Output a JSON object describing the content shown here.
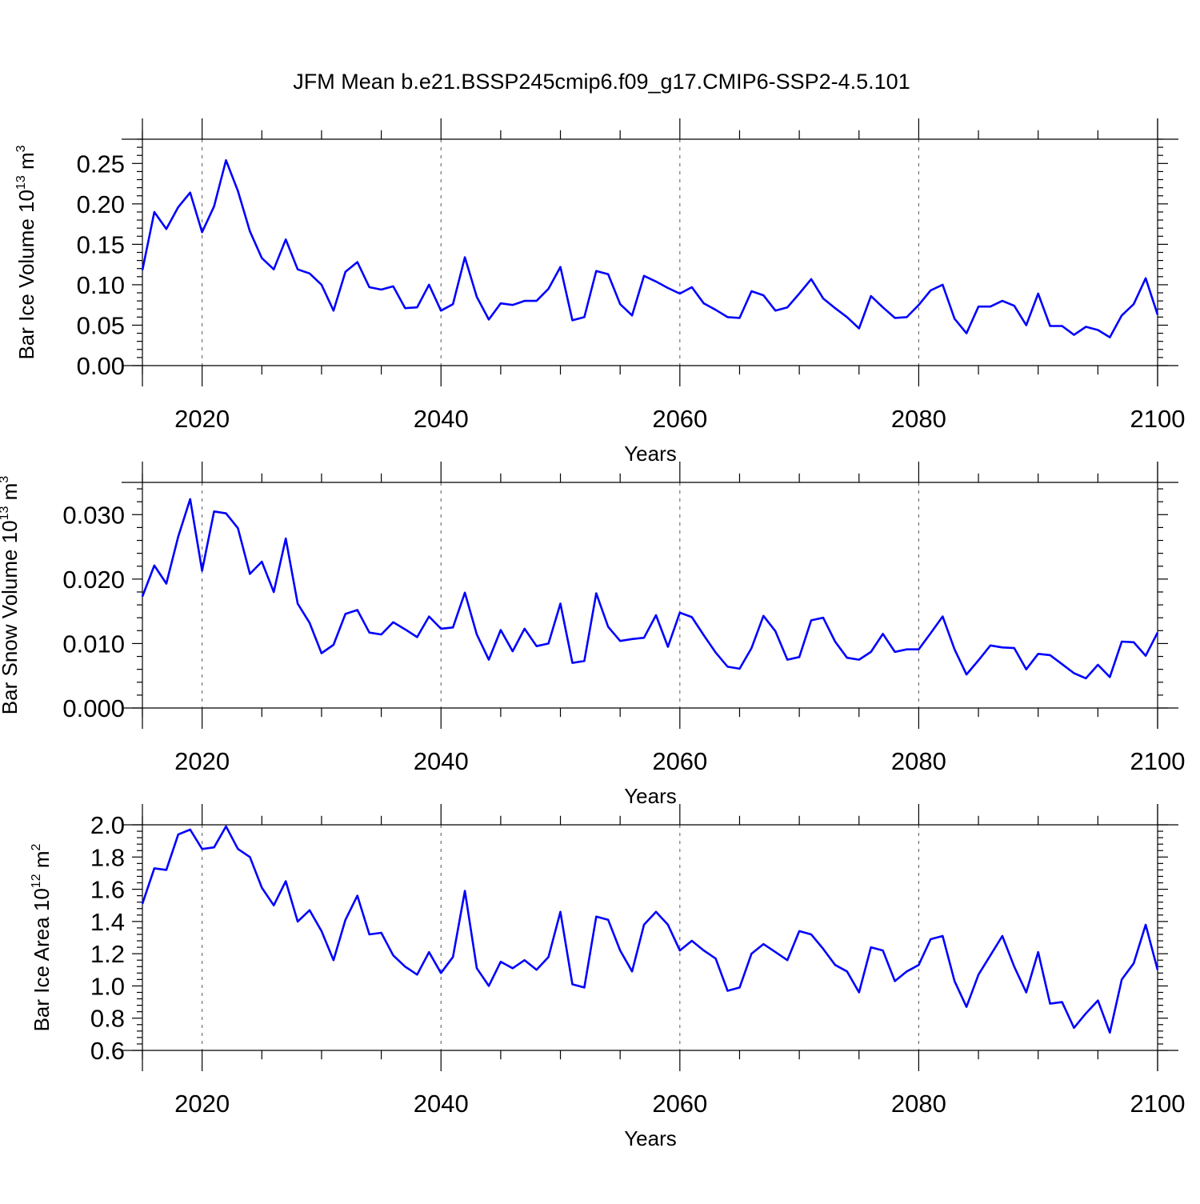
{
  "title": "JFM Mean b.e21.BSSP245cmip6.f09_g17.CMIP6-SSP2-4.5.101",
  "chart_data": [
    {
      "type": "line",
      "ylabel": {
        "prefix": "Bar Ice Volume 10",
        "exponent": "13",
        "unit": " m",
        "unit_exponent": "3"
      },
      "xlabel": "Years",
      "xlim": [
        2015,
        2100
      ],
      "ylim": [
        0.0,
        0.28
      ],
      "x_ticks": [
        2020,
        2040,
        2060,
        2080,
        2100
      ],
      "x_tick_labels": [
        "2020",
        "2040",
        "2060",
        "2080",
        "2100"
      ],
      "y_ticks": [
        0.0,
        0.05,
        0.1,
        0.15,
        0.2,
        0.25
      ],
      "y_tick_labels": [
        "0.00",
        "0.05",
        "0.10",
        "0.15",
        "0.20",
        "0.25"
      ],
      "x_grid": [
        2020,
        2040,
        2060,
        2080
      ],
      "color": "#0000ff",
      "x_start": 2015,
      "values": [
        0.118,
        0.19,
        0.169,
        0.196,
        0.214,
        0.165,
        0.197,
        0.254,
        0.216,
        0.166,
        0.133,
        0.119,
        0.156,
        0.119,
        0.114,
        0.1,
        0.068,
        0.116,
        0.128,
        0.097,
        0.094,
        0.098,
        0.071,
        0.072,
        0.1,
        0.068,
        0.076,
        0.134,
        0.085,
        0.057,
        0.077,
        0.075,
        0.08,
        0.08,
        0.095,
        0.122,
        0.056,
        0.06,
        0.117,
        0.113,
        0.076,
        0.062,
        0.111,
        0.104,
        0.096,
        0.089,
        0.097,
        0.077,
        0.069,
        0.06,
        0.059,
        0.092,
        0.087,
        0.068,
        0.072,
        0.089,
        0.107,
        0.083,
        0.071,
        0.06,
        0.046,
        0.086,
        0.072,
        0.059,
        0.06,
        0.075,
        0.093,
        0.1,
        0.058,
        0.04,
        0.073,
        0.073,
        0.08,
        0.074,
        0.05,
        0.089,
        0.049,
        0.049,
        0.038,
        0.048,
        0.044,
        0.035,
        0.062,
        0.076,
        0.108,
        0.063
      ]
    },
    {
      "type": "line",
      "ylabel": {
        "prefix": "Bar Snow Volume 10",
        "exponent": "13",
        "unit": " m",
        "unit_exponent": "3"
      },
      "xlabel": "Years",
      "xlim": [
        2015,
        2100
      ],
      "ylim": [
        0.0,
        0.035
      ],
      "x_ticks": [
        2020,
        2040,
        2060,
        2080,
        2100
      ],
      "x_tick_labels": [
        "2020",
        "2040",
        "2060",
        "2080",
        "2100"
      ],
      "y_ticks": [
        0.0,
        0.01,
        0.02,
        0.03
      ],
      "y_tick_labels": [
        "0.000",
        "0.010",
        "0.020",
        "0.030"
      ],
      "x_grid": [
        2020,
        2040,
        2060,
        2080
      ],
      "color": "#0000ff",
      "x_start": 2015,
      "values": [
        0.0173,
        0.0221,
        0.0193,
        0.0266,
        0.0324,
        0.0213,
        0.0305,
        0.0302,
        0.0279,
        0.0208,
        0.0227,
        0.018,
        0.0263,
        0.0162,
        0.0132,
        0.0085,
        0.0098,
        0.0146,
        0.0152,
        0.0117,
        0.0114,
        0.0133,
        0.0122,
        0.011,
        0.0142,
        0.0123,
        0.0125,
        0.0179,
        0.0114,
        0.0075,
        0.0121,
        0.0088,
        0.0123,
        0.0096,
        0.01,
        0.0162,
        0.007,
        0.0073,
        0.0178,
        0.0126,
        0.0104,
        0.0107,
        0.0109,
        0.0144,
        0.0095,
        0.0148,
        0.0141,
        0.0113,
        0.0086,
        0.0064,
        0.0061,
        0.0093,
        0.0143,
        0.0119,
        0.0075,
        0.0079,
        0.0136,
        0.014,
        0.0103,
        0.0078,
        0.0075,
        0.0087,
        0.0115,
        0.0087,
        0.0091,
        0.0091,
        0.0116,
        0.0142,
        0.0091,
        0.0052,
        0.0074,
        0.0097,
        0.0094,
        0.0093,
        0.006,
        0.0084,
        0.0082,
        0.0068,
        0.0054,
        0.0046,
        0.0067,
        0.0048,
        0.0103,
        0.0102,
        0.0081,
        0.0117
      ]
    },
    {
      "type": "line",
      "ylabel": {
        "prefix": "Bar Ice Area 10",
        "exponent": "12",
        "unit": " m",
        "unit_exponent": "2"
      },
      "xlabel": "Years",
      "xlim": [
        2015,
        2100
      ],
      "ylim": [
        0.6,
        2.0
      ],
      "x_ticks": [
        2020,
        2040,
        2060,
        2080,
        2100
      ],
      "x_tick_labels": [
        "2020",
        "2040",
        "2060",
        "2080",
        "2100"
      ],
      "y_ticks": [
        0.6,
        0.8,
        1.0,
        1.2,
        1.4,
        1.6,
        1.8,
        2.0
      ],
      "y_tick_labels": [
        "0.6",
        "0.8",
        "1.0",
        "1.2",
        "1.4",
        "1.6",
        "1.8",
        "2.0"
      ],
      "x_grid": [
        2020,
        2040,
        2060,
        2080
      ],
      "color": "#0000ff",
      "x_start": 2015,
      "values": [
        1.51,
        1.73,
        1.72,
        1.94,
        1.97,
        1.85,
        1.86,
        1.99,
        1.85,
        1.8,
        1.61,
        1.5,
        1.65,
        1.4,
        1.47,
        1.34,
        1.16,
        1.41,
        1.56,
        1.32,
        1.33,
        1.19,
        1.12,
        1.07,
        1.21,
        1.08,
        1.18,
        1.59,
        1.11,
        1.0,
        1.15,
        1.11,
        1.16,
        1.1,
        1.18,
        1.46,
        1.01,
        0.99,
        1.43,
        1.41,
        1.22,
        1.09,
        1.38,
        1.46,
        1.38,
        1.22,
        1.28,
        1.22,
        1.17,
        0.97,
        0.99,
        1.2,
        1.26,
        1.21,
        1.16,
        1.34,
        1.32,
        1.23,
        1.13,
        1.09,
        0.96,
        1.24,
        1.22,
        1.03,
        1.09,
        1.13,
        1.29,
        1.31,
        1.03,
        0.87,
        1.07,
        1.19,
        1.31,
        1.12,
        0.96,
        1.21,
        0.89,
        0.9,
        0.74,
        0.83,
        0.91,
        0.71,
        1.04,
        1.14,
        1.38,
        1.1
      ]
    }
  ]
}
